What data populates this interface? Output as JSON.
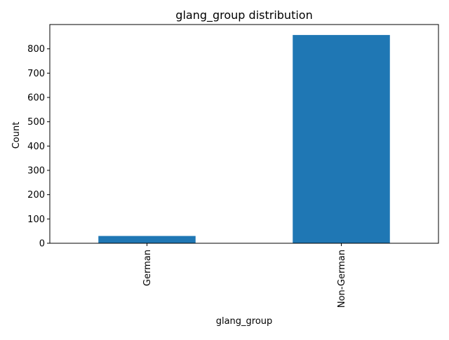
{
  "chart_data": {
    "type": "bar",
    "title": "glang_group distribution",
    "xlabel": "glang_group",
    "ylabel": "Count",
    "categories": [
      "German",
      "Non-German"
    ],
    "values": [
      30,
      857
    ],
    "ylim": [
      0,
      900
    ],
    "yticks": [
      0,
      100,
      200,
      300,
      400,
      500,
      600,
      700,
      800
    ],
    "bar_color": "#1f77b4",
    "grid": false,
    "legend": "none",
    "x_tick_rotation": "vertical"
  }
}
